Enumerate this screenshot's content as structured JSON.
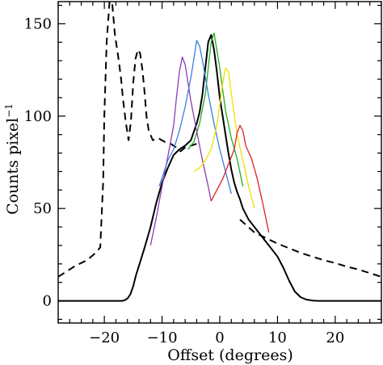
{
  "chart_data": {
    "type": "line",
    "xlabel": "Offset (degrees)",
    "ylabel": "Counts pixel",
    "ylabel_superscript": "−1",
    "xlim": [
      -28,
      28
    ],
    "ylim": [
      -12,
      162
    ],
    "x_ticks": [
      -20,
      -10,
      0,
      10,
      20
    ],
    "x_tick_labels": [
      "−20",
      "−10",
      "0",
      "10",
      "20"
    ],
    "y_ticks": [
      0,
      50,
      100,
      150
    ],
    "y_tick_labels": [
      "0",
      "50",
      "100",
      "150"
    ],
    "grid": false,
    "legend": "none",
    "series": [
      {
        "color": "#000000",
        "style": "dashed",
        "x": [
          -28,
          -25,
          -23,
          -21.5,
          -20.7,
          -20.2,
          -20,
          -19.6,
          -19.1,
          -18.7,
          -18.6,
          -18.2,
          -17.5,
          -17.1,
          -16.8,
          -16.3,
          -15.8,
          -15.4,
          -15,
          -14.6,
          -14.2,
          -13.8,
          -13.4,
          -13,
          -12.7,
          -12.3,
          -11.6,
          -10.6,
          -9.5,
          -8.5,
          -7.5,
          -6.8,
          -6,
          -5,
          -4
        ],
        "y": [
          13,
          19,
          22,
          26,
          29,
          65,
          100,
          140,
          162,
          162,
          160,
          145,
          130,
          120,
          110,
          97,
          87,
          97,
          118,
          131,
          136,
          134,
          125,
          112,
          100,
          92,
          87,
          88,
          86,
          85,
          83,
          81,
          83,
          84,
          85
        ]
      },
      {
        "color": "#000000",
        "style": "dashed",
        "x": [
          3.5,
          6,
          8,
          10,
          12,
          14,
          16,
          18,
          20,
          22,
          24,
          26,
          28
        ],
        "y": [
          44,
          37,
          34,
          31,
          28.5,
          26,
          24,
          22,
          20.5,
          18.5,
          17,
          15,
          13
        ]
      },
      {
        "color": "#000000",
        "style": "solid",
        "x": [
          -28,
          -17,
          -16.5,
          -16,
          -15.5,
          -15,
          -14.5,
          -14,
          -13,
          -12,
          -11,
          -10,
          -9,
          -8,
          -7,
          -6,
          -5,
          -4,
          -3.5,
          -3,
          -2.5,
          -2,
          -1.5,
          -1,
          -0.5,
          0,
          0.5,
          1,
          1.5,
          2,
          2.5,
          3,
          3.5,
          4,
          5,
          6,
          7,
          8,
          9,
          10,
          11,
          12,
          13,
          14,
          15,
          16,
          16.5,
          17,
          28
        ],
        "y": [
          0,
          0,
          0.3,
          1.2,
          3.5,
          8,
          14,
          19,
          29,
          40,
          53,
          64,
          72,
          79,
          82,
          84,
          87,
          96,
          102,
          112,
          126,
          140,
          144,
          136,
          124,
          110,
          100,
          90,
          80,
          71,
          64,
          59,
          55,
          50,
          44,
          40,
          36,
          32,
          28,
          24,
          18,
          11,
          5,
          2,
          0.7,
          0.2,
          0.05,
          0,
          0
        ]
      },
      {
        "color": "#22aa22",
        "style": "solid",
        "x": [
          -5.5,
          -4.5,
          -3.5,
          -2.5,
          -2,
          -1.5,
          -1,
          0,
          1,
          2,
          3,
          4
        ],
        "y": [
          82,
          86,
          96,
          112,
          126,
          140,
          145,
          126,
          103,
          88,
          77,
          62
        ]
      },
      {
        "color": "#8e3bb3",
        "style": "solid",
        "x": [
          -12,
          -11,
          -10,
          -9,
          -8,
          -7.5,
          -7,
          -6.5,
          -6,
          -5.5,
          -5,
          -4,
          -3,
          -2,
          -1.5
        ],
        "y": [
          30,
          45,
          62,
          78,
          95,
          110,
          124,
          132,
          128,
          118,
          108,
          92,
          76,
          62,
          54
        ]
      },
      {
        "color": "#3a7fdc",
        "style": "solid",
        "x": [
          -10.5,
          -9,
          -8,
          -7,
          -6,
          -5,
          -4.5,
          -4,
          -3.5,
          -3,
          -2,
          -1,
          0,
          1,
          2
        ],
        "y": [
          62,
          76,
          82,
          92,
          105,
          121,
          131,
          141,
          138,
          130,
          112,
          96,
          82,
          70,
          58
        ]
      },
      {
        "color": "#f0e000",
        "style": "solid",
        "x": [
          -4.5,
          -3.5,
          -2.5,
          -1.5,
          -0.5,
          0,
          0.5,
          1,
          1.5,
          2,
          3,
          4,
          5,
          6
        ],
        "y": [
          70,
          72,
          76,
          82,
          95,
          106,
          118,
          126,
          124,
          112,
          90,
          76,
          62,
          50
        ]
      },
      {
        "color": "#e02020",
        "style": "solid",
        "x": [
          -1.5,
          -0.5,
          0.5,
          1.5,
          2.5,
          3,
          3.5,
          4,
          4.5,
          5.5,
          6.5,
          7.5,
          8.5
        ],
        "y": [
          54,
          60,
          66,
          74,
          82,
          91,
          95,
          92,
          84,
          77,
          66,
          52,
          37
        ]
      }
    ]
  }
}
